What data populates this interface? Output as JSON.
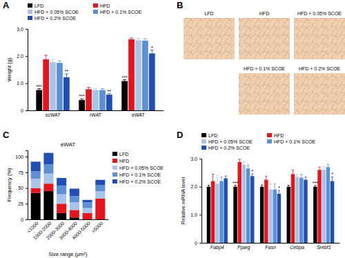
{
  "chart_data": [
    {
      "type": "bar",
      "title": "A",
      "y_label": "Weight (g)",
      "categories": [
        "scWAT",
        "rWAT",
        "eWAT"
      ],
      "ylim": [
        0,
        3
      ],
      "yticks": [
        0,
        {
          "value": 1,
          "label": "1.0"
        },
        {
          "value": 2,
          "label": "2.0"
        },
        {
          "value": 3,
          "label": "3.0"
        }
      ],
      "legend": "top",
      "series": [
        {
          "name": "LFD",
          "color": "#000000",
          "values": [
            0.75,
            0.38,
            1.08
          ],
          "errors": [
            0.05,
            0.04,
            0.05
          ],
          "significance": [
            "***",
            "***",
            "***"
          ]
        },
        {
          "name": "HFD",
          "color": "#e8141c",
          "values": [
            1.88,
            0.78,
            2.62
          ],
          "errors": [
            0.15,
            0.07,
            0.05
          ]
        },
        {
          "name": "HFD + 0.05% SCOE",
          "color": "#a9c4e8",
          "values": [
            1.78,
            0.75,
            2.58
          ],
          "errors": [
            0.1,
            0.05,
            0.08
          ]
        },
        {
          "name": "HFD + 0.1% SCOE",
          "color": "#5b8fd6",
          "values": [
            1.75,
            0.75,
            2.57
          ],
          "errors": [
            0.08,
            0.05,
            0.07
          ]
        },
        {
          "name": "HFD + 0.2% SCOE",
          "color": "#1f4fb5",
          "values": [
            1.22,
            0.58,
            2.1
          ],
          "errors": [
            0.12,
            0.04,
            0.12
          ],
          "significance": [
            "**",
            "**",
            "*"
          ]
        }
      ]
    },
    {
      "type": "bar",
      "stacked": true,
      "title": "C",
      "subtitle": "eWAT",
      "x_label": "Size range (µm²)",
      "y_label": "Frequency (%)",
      "categories": [
        "<1000",
        "1000-2000",
        "2000-3000",
        "3000-4000",
        "4000-5000",
        ">5000"
      ],
      "ylim": [
        0,
        110
      ],
      "yticks": [
        0,
        25,
        50,
        75,
        100
      ],
      "legend": "right",
      "series": [
        {
          "name": "LFD",
          "color": "#000000",
          "values": [
            42,
            45,
            10,
            3,
            0,
            0
          ]
        },
        {
          "name": "HFD",
          "color": "#e8141c",
          "values": [
            8,
            12,
            15,
            12,
            10,
            33
          ]
        },
        {
          "name": "HFD + 0.05% SCOE",
          "color": "#a9c4e8",
          "values": [
            15,
            16,
            15,
            12,
            8,
            12
          ]
        },
        {
          "name": "HFD + 0.1% SCOE",
          "color": "#5b8fd6",
          "values": [
            12,
            15,
            14,
            10,
            9,
            10
          ]
        },
        {
          "name": "HFD + 0.2% SCOE",
          "color": "#1f4fb5",
          "values": [
            15,
            18,
            12,
            12,
            4,
            8
          ]
        }
      ]
    },
    {
      "type": "bar",
      "title": "D",
      "y_label": "Relative mRNA level",
      "categories": [
        "Fabp4",
        "Pparg",
        "Fasn",
        "Cebpa",
        "Srebf1"
      ],
      "ylim": [
        0,
        3
      ],
      "yticks": [
        0,
        {
          "value": 1,
          "label": "1.0"
        },
        {
          "value": 2,
          "label": "2.0"
        },
        {
          "value": 3,
          "label": "3.0"
        }
      ],
      "legend": "top",
      "series": [
        {
          "name": "LFD",
          "color": "#000000",
          "values": [
            2.0,
            2.0,
            2.0,
            2.0,
            2.0
          ],
          "errors": [
            0.05,
            0.05,
            0.06,
            0.05,
            0.04
          ],
          "significance": [
            null,
            "***",
            null,
            null,
            "***"
          ]
        },
        {
          "name": "HFD",
          "color": "#e8141c",
          "values": [
            2.2,
            2.88,
            2.25,
            2.45,
            2.6
          ],
          "errors": [
            0.25,
            0.1,
            0.12,
            0.15,
            0.1
          ]
        },
        {
          "name": "HFD + 0.05% SCOE",
          "color": "#a9c4e8",
          "values": [
            2.1,
            2.78,
            1.9,
            2.35,
            2.6
          ],
          "errors": [
            0.3,
            0.12,
            0.2,
            0.1,
            0.12
          ]
        },
        {
          "name": "HFD + 0.1% SCOE",
          "color": "#5b8fd6",
          "values": [
            2.2,
            2.65,
            1.9,
            2.32,
            2.7
          ],
          "errors": [
            0.15,
            0.12,
            0.2,
            0.12,
            0.1
          ]
        },
        {
          "name": "HFD + 0.2% SCOE",
          "color": "#1f4fb5",
          "values": [
            2.3,
            2.38,
            1.75,
            2.25,
            2.2
          ],
          "errors": [
            0.08,
            0.08,
            0.12,
            0.1,
            0.15
          ],
          "significance": [
            null,
            "*",
            "*",
            null,
            "*"
          ]
        }
      ]
    }
  ],
  "micrographs": {
    "title": "B",
    "panels": [
      "LFD",
      "HFD",
      "HFD + 0.05% SCOE",
      "HFD + 0.1% SCOE",
      "HFD + 0.2% SCOE"
    ]
  }
}
